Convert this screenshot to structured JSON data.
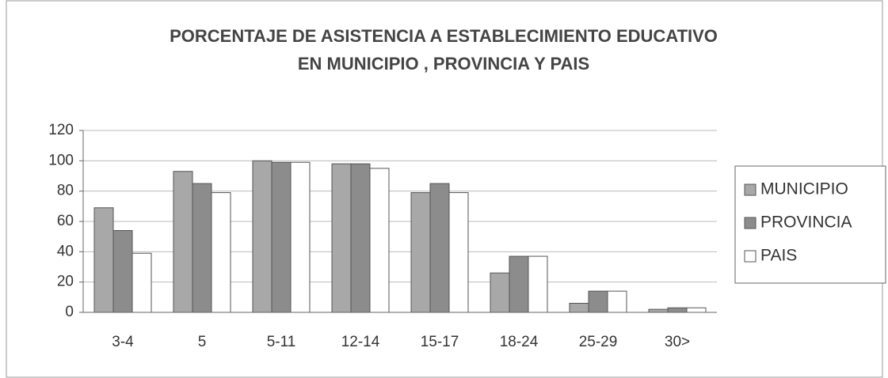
{
  "chart_data": {
    "type": "bar",
    "title": [
      "PORCENTAJE DE ASISTENCIA A ESTABLECIMIENTO EDUCATIVO",
      "EN MUNICIPIO , PROVINCIA Y PAIS"
    ],
    "categories": [
      "3-4",
      "5",
      "5-11",
      "12-14",
      "15-17",
      "18-24",
      "25-29",
      "30>"
    ],
    "series": [
      {
        "name": "MUNICIPIO",
        "color": "#a8a8a8",
        "values": [
          69,
          93,
          100,
          98,
          79,
          26,
          6,
          2
        ]
      },
      {
        "name": "PROVINCIA",
        "color": "#8c8c8c",
        "values": [
          54,
          85,
          99,
          98,
          85,
          37,
          14,
          3
        ]
      },
      {
        "name": "PAIS",
        "color": "#ffffff",
        "values": [
          39,
          79,
          99,
          95,
          79,
          37,
          14,
          3
        ]
      }
    ],
    "ylim": [
      0,
      120
    ],
    "yticks": [
      0,
      20,
      40,
      60,
      80,
      100,
      120
    ],
    "grid": true,
    "legend": "right"
  }
}
